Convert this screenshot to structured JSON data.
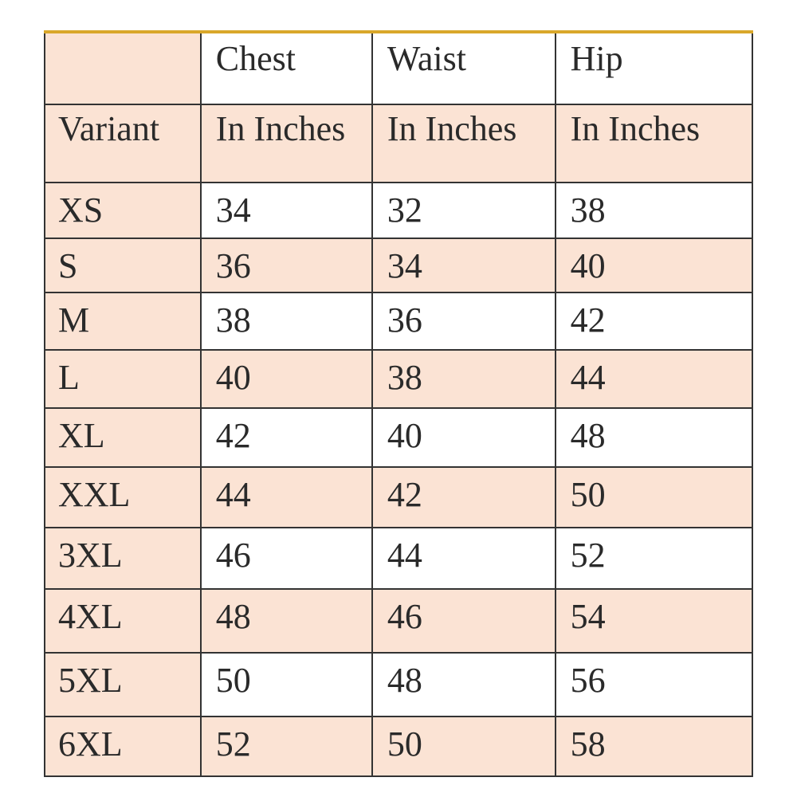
{
  "header": {
    "row1": [
      "",
      "Chest",
      "Waist",
      "Hip"
    ],
    "row2": [
      "Variant",
      "In Inches",
      "In Inches",
      "In Inches"
    ]
  },
  "rows": [
    [
      "XS",
      "34",
      "32",
      "38"
    ],
    [
      "S",
      "36",
      "34",
      "40"
    ],
    [
      "M",
      "38",
      "36",
      "42"
    ],
    [
      "L",
      "40",
      "38",
      "44"
    ],
    [
      "XL",
      "42",
      "40",
      "48"
    ],
    [
      "XXL",
      "44",
      "42",
      "50"
    ],
    [
      "3XL",
      "46",
      "44",
      "52"
    ],
    [
      "4XL",
      "48",
      "46",
      "54"
    ],
    [
      "5XL",
      "50",
      "48",
      "56"
    ],
    [
      "6XL",
      "52",
      "50",
      "58"
    ]
  ],
  "colors": {
    "shade": "#fbe3d4",
    "top_border": "#d9a72a",
    "grid": "#333333"
  }
}
